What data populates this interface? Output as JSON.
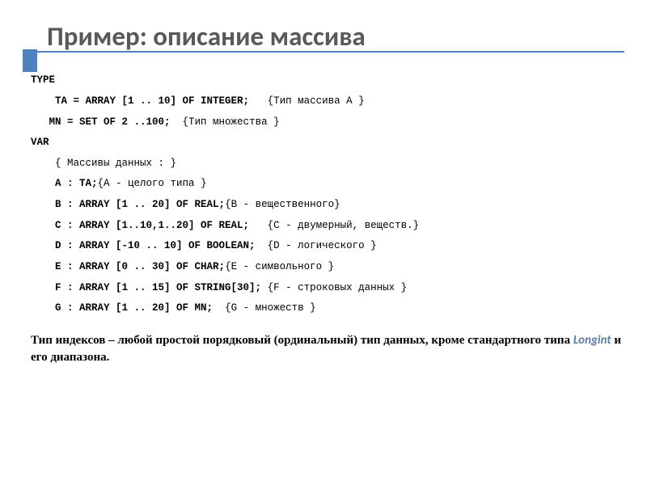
{
  "accent_color": "#4f81bd",
  "underline_color": "#4f81bd",
  "title": "Пример: описание массива",
  "code": {
    "l1": {
      "b": "TYPE",
      "r": ""
    },
    "l2": {
      "pad": "    ",
      "b": "TA = ARRAY [1 .. 10] OF INTEGER;",
      "r": "   {Тип массива А }"
    },
    "l3": {
      "pad": "   ",
      "b": "MN = SET OF 2 ..100;",
      "r": "  {Тип множества }"
    },
    "l4": {
      "b": "VAR",
      "r": ""
    },
    "l5": {
      "pad": "    ",
      "b": "",
      "r": "{ Массивы данных : }"
    },
    "l6": {
      "pad": "    ",
      "b": "A : TA;",
      "r": "{A - целого типа }"
    },
    "l7": {
      "pad": "    ",
      "b": "B : ARRAY [1 .. 20] OF REAL;",
      "r": "{B - вещественного}"
    },
    "l8": {
      "pad": "    ",
      "b": "C : ARRAY [1..10,1..20] OF REAL;",
      "r": "   {C - двумерный, веществ.}"
    },
    "l9": {
      "pad": "    ",
      "b": "D : ARRAY [-10 .. 10] OF BOOLEAN;",
      "r": "  {D - логического }"
    },
    "l10": {
      "pad": "    ",
      "b": "E : ARRAY [0 .. 30] OF CHAR;",
      "r": "{E - символьного }"
    },
    "l11": {
      "pad": "    ",
      "b": "F : ARRAY [1 .. 15] OF STRING[30];",
      "r": " {F - строковых данных }"
    },
    "l12": {
      "pad": "    ",
      "b": "G : ARRAY [1 .. 20] OF MN;",
      "r": "  {G - множеств }"
    }
  },
  "footnote": {
    "before": "Тип индексов – любой простой порядковый (ординальный) тип данных, кроме стандартного типа ",
    "em": "Longint",
    "after": " и его диапазона."
  }
}
